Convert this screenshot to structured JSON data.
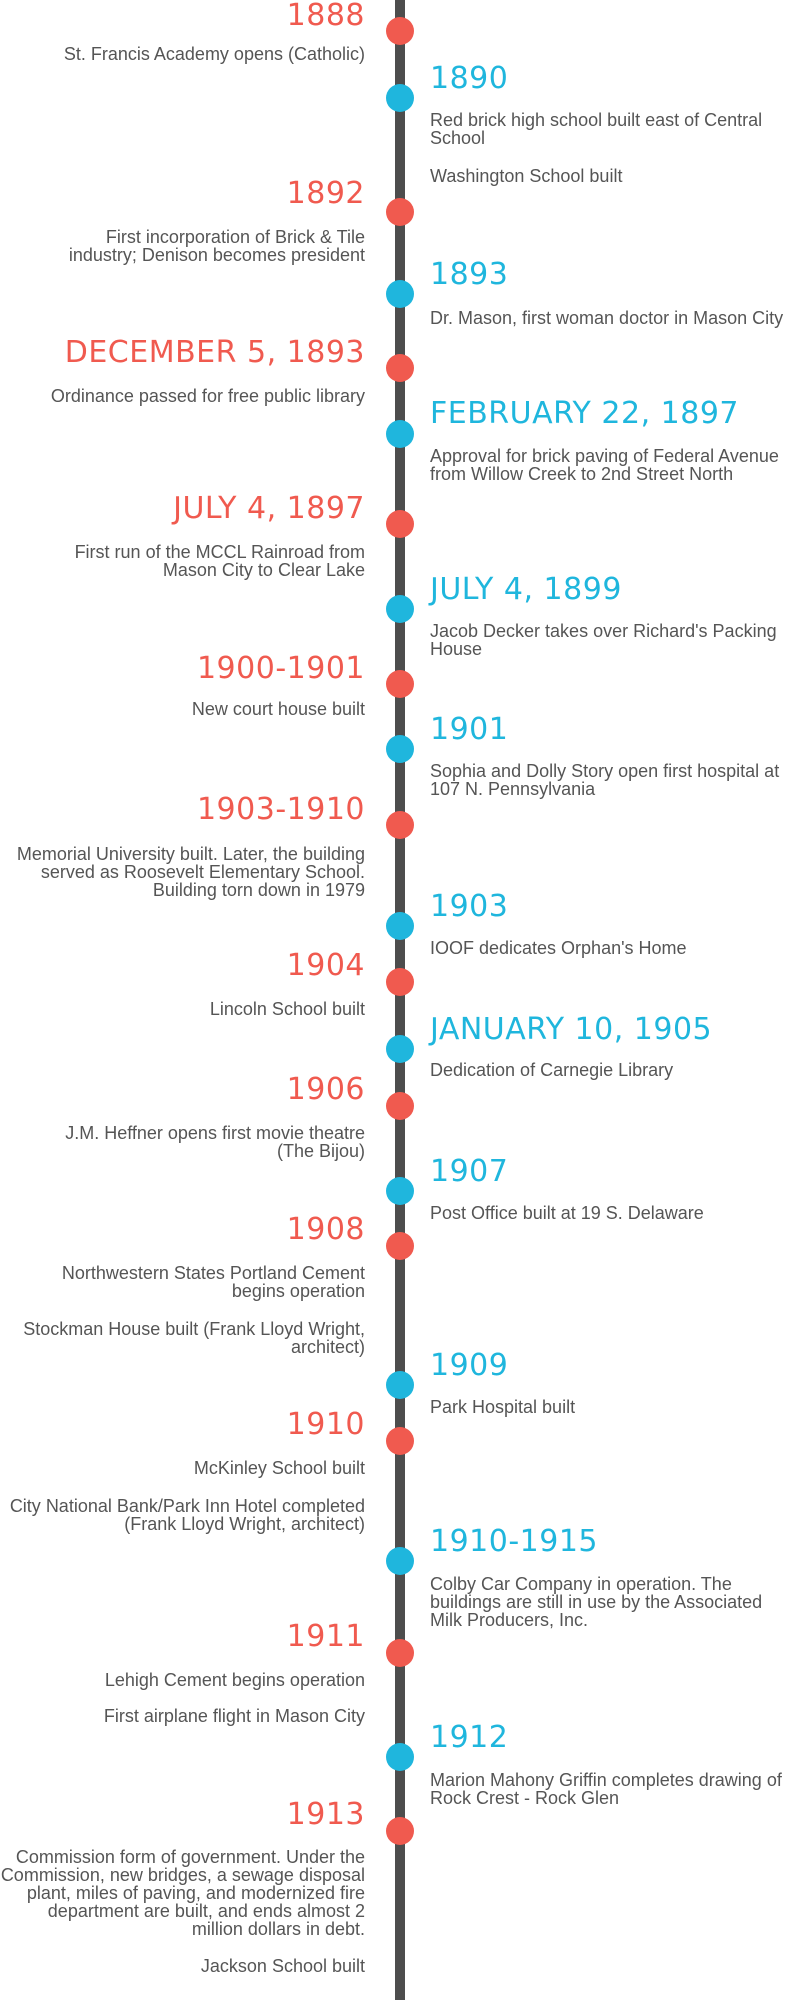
{
  "colors": {
    "left_accent": "#f05a4f",
    "right_accent": "#1fb6dd",
    "line": "#4d4d4d",
    "text": "#555555"
  },
  "events": [
    {
      "side": "left",
      "date": "1888",
      "items": [
        "St. Francis Academy opens (Catholic)"
      ]
    },
    {
      "side": "right",
      "date": "1890",
      "items": [
        "Red brick high school built east of Central School",
        "Washington School built"
      ]
    },
    {
      "side": "left",
      "date": "1892",
      "items": [
        "First incorporation of Brick & Tile industry; Denison becomes president"
      ]
    },
    {
      "side": "right",
      "date": "1893",
      "items": [
        "Dr. Mason, first woman doctor in Mason City"
      ]
    },
    {
      "side": "left",
      "date": "DECEMBER 5, 1893",
      "items": [
        "Ordinance passed for free public library"
      ]
    },
    {
      "side": "right",
      "date": "FEBRUARY 22, 1897",
      "items": [
        "Approval for brick paving of Federal Avenue from Willow Creek to 2nd Street North"
      ]
    },
    {
      "side": "left",
      "date": "JULY 4, 1897",
      "items": [
        "First run of the MCCL Rainroad from Mason City to Clear Lake"
      ]
    },
    {
      "side": "right",
      "date": "JULY 4, 1899",
      "items": [
        "Jacob Decker takes over Richard's Packing House"
      ]
    },
    {
      "side": "left",
      "date": "1900-1901",
      "items": [
        "New court house built"
      ]
    },
    {
      "side": "right",
      "date": "1901",
      "items": [
        "Sophia and Dolly Story open first hospital at 107 N. Pennsylvania"
      ]
    },
    {
      "side": "left",
      "date": "1903-1910",
      "items": [
        "Memorial University built.  Later, the building served as Roosevelt Elementary School.  Building torn down in 1979"
      ]
    },
    {
      "side": "right",
      "date": "1903",
      "items": [
        "IOOF dedicates Orphan's Home"
      ]
    },
    {
      "side": "left",
      "date": "1904",
      "items": [
        "Lincoln School built"
      ]
    },
    {
      "side": "right",
      "date": "JANUARY 10, 1905",
      "items": [
        "Dedication of Carnegie Library"
      ]
    },
    {
      "side": "left",
      "date": "1906",
      "items": [
        "J.M. Heffner opens first movie theatre (The Bijou)"
      ]
    },
    {
      "side": "right",
      "date": "1907",
      "items": [
        "Post Office built at 19 S. Delaware"
      ]
    },
    {
      "side": "left",
      "date": "1908",
      "items": [
        "Northwestern States Portland Cement begins operation",
        "Stockman House built (Frank Lloyd Wright, architect)"
      ]
    },
    {
      "side": "right",
      "date": "1909",
      "items": [
        "Park Hospital built"
      ]
    },
    {
      "side": "left",
      "date": "1910",
      "items": [
        "McKinley School built",
        "City National Bank/Park Inn Hotel completed (Frank Lloyd Wright, architect)"
      ]
    },
    {
      "side": "right",
      "date": "1910-1915",
      "items": [
        "Colby Car Company in operation.  The buildings are still in use by the Associated Milk Producers, Inc."
      ]
    },
    {
      "side": "left",
      "date": "1911",
      "items": [
        "Lehigh Cement begins operation",
        "First airplane flight in Mason City"
      ]
    },
    {
      "side": "right",
      "date": "1912",
      "items": [
        "Marion Mahony Griffin completes drawing of Rock Crest -  Rock Glen"
      ]
    },
    {
      "side": "left",
      "date": "1913",
      "items": [
        "Commission form of government.  Under the Commission, new bridges, a sewage disposal plant, miles of paving, and modernized fire department are built, and ends almost 2 million dollars in debt.",
        "Jackson School built"
      ]
    }
  ]
}
